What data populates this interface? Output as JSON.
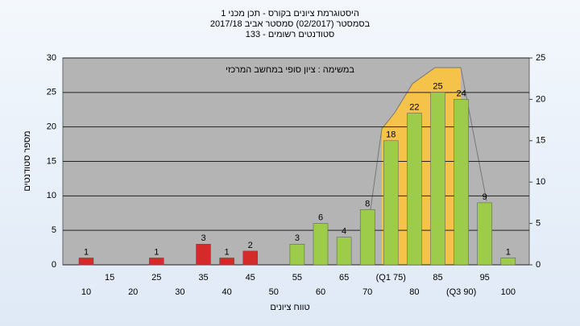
{
  "chart_data": {
    "type": "bar",
    "title": [
      "היסטוגרמת ציונים בקורס - תכן מכני 1",
      "בסמסטר  (02/2017)  סמסטר אביב 2017/18",
      "סטודנטים רשומים - 133"
    ],
    "annotation": "במשימה : ציון סופי במחשב המרכזי",
    "x_label": "טווח ציונים",
    "y_label": "מספר סטודנטים",
    "categories": [
      "10",
      "15",
      "20",
      "25",
      "30",
      "35",
      "40",
      "45",
      "50",
      "55",
      "60",
      "65",
      "70",
      "(Q1 75)",
      "80",
      "85",
      "(Q3 90)",
      "95",
      "100"
    ],
    "values": [
      1,
      null,
      null,
      1,
      null,
      3,
      1,
      2,
      null,
      3,
      6,
      4,
      8,
      18,
      22,
      25,
      24,
      9,
      1
    ],
    "colors": [
      "#d42a2a",
      null,
      null,
      "#d42a2a",
      null,
      "#d42a2a",
      "#d42a2a",
      "#d42a2a",
      null,
      "#9ccc4a",
      "#9ccc4a",
      "#9ccc4a",
      "#9ccc4a",
      "#9ccc4a",
      "#9ccc4a",
      "#9ccc4a",
      "#9ccc4a",
      "#9ccc4a",
      "#9ccc4a"
    ],
    "ylim": [
      0,
      30
    ],
    "yticks": [
      0,
      5,
      10,
      15,
      20,
      25,
      30
    ],
    "y2lim": [
      0,
      25
    ],
    "y2ticks": [
      0,
      5,
      10,
      15,
      20,
      25
    ],
    "grid": true
  }
}
